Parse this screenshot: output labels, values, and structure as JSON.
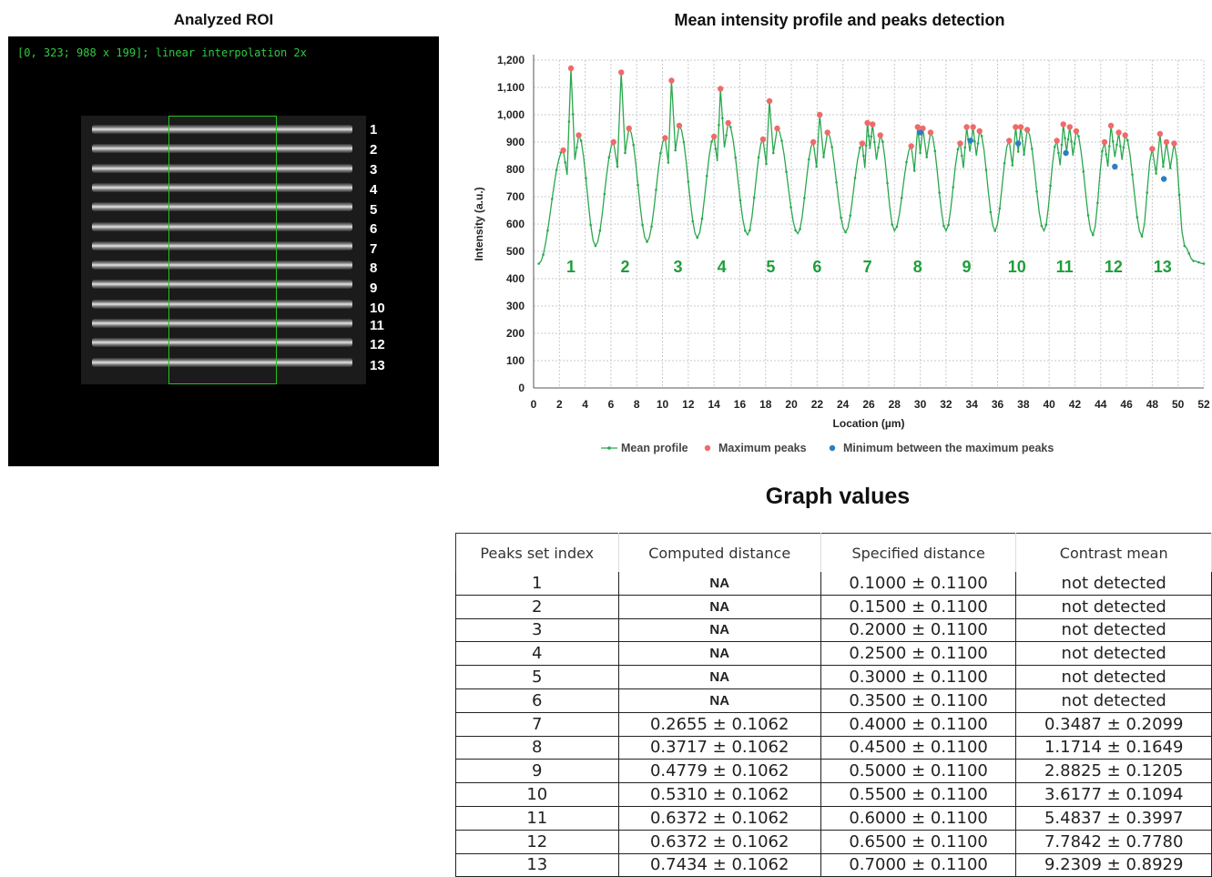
{
  "roi": {
    "title": "Analyzed ROI",
    "caption": "[0, 323; 988 x 199]; linear interpolation 2x",
    "labels": [
      "1",
      "2",
      "3",
      "4",
      "5",
      "6",
      "7",
      "8",
      "9",
      "10",
      "11",
      "12",
      "13"
    ]
  },
  "chart_data": {
    "type": "line",
    "title": "Mean intensity profile and peaks detection",
    "xlabel": "Location (µm)",
    "ylabel": "Intensity (a.u.)",
    "xlim": [
      0,
      52
    ],
    "ylim": [
      0,
      1200
    ],
    "xticks": [
      0,
      2,
      4,
      6,
      8,
      10,
      12,
      14,
      16,
      18,
      20,
      22,
      24,
      26,
      28,
      30,
      32,
      34,
      36,
      38,
      40,
      42,
      44,
      46,
      48,
      50,
      52
    ],
    "yticks": [
      0,
      100,
      200,
      300,
      400,
      500,
      600,
      700,
      800,
      900,
      1000,
      1100,
      1200
    ],
    "ytick_labels": [
      "0",
      "100",
      "200",
      "300",
      "400",
      "500",
      "600",
      "700",
      "800",
      "900",
      "1,000",
      "1,100",
      "1,200"
    ],
    "grid": true,
    "legend_position": "bottom",
    "colors": {
      "line": "#2aa84e",
      "max": "#ef6a6a",
      "min": "#2e7dbf",
      "label": "#1f9e3a"
    },
    "legend": [
      "Mean profile",
      "Maximum peaks",
      "Minimum between the maximum peaks"
    ],
    "group_labels": [
      {
        "text": "1",
        "x": 2.9
      },
      {
        "text": "2",
        "x": 7.1
      },
      {
        "text": "3",
        "x": 11.2
      },
      {
        "text": "4",
        "x": 14.6
      },
      {
        "text": "5",
        "x": 18.4
      },
      {
        "text": "6",
        "x": 22.0
      },
      {
        "text": "7",
        "x": 25.9
      },
      {
        "text": "8",
        "x": 29.8
      },
      {
        "text": "9",
        "x": 33.6
      },
      {
        "text": "10",
        "x": 37.5
      },
      {
        "text": "11",
        "x": 41.2
      },
      {
        "text": "12",
        "x": 45.0
      },
      {
        "text": "13",
        "x": 48.8
      }
    ],
    "groups": [
      {
        "min_before": [
          0.4,
          455
        ],
        "maxima": [
          [
            2.3,
            870
          ],
          [
            2.9,
            1170
          ],
          [
            3.5,
            925
          ]
        ],
        "minima": []
      },
      {
        "min_before": [
          4.8,
          520
        ],
        "maxima": [
          [
            6.2,
            900
          ],
          [
            6.8,
            1155
          ],
          [
            7.4,
            950
          ]
        ],
        "minima": []
      },
      {
        "min_before": [
          8.8,
          535
        ],
        "maxima": [
          [
            10.2,
            915
          ],
          [
            10.7,
            1125
          ],
          [
            11.3,
            960
          ]
        ],
        "minima": []
      },
      {
        "min_before": [
          12.7,
          550
        ],
        "maxima": [
          [
            14.0,
            920
          ],
          [
            14.5,
            1095
          ],
          [
            15.1,
            970
          ]
        ],
        "minima": []
      },
      {
        "min_before": [
          16.6,
          560
        ],
        "maxima": [
          [
            17.8,
            910
          ],
          [
            18.3,
            1050
          ],
          [
            18.9,
            950
          ]
        ],
        "minima": []
      },
      {
        "min_before": [
          20.5,
          565
        ],
        "maxima": [
          [
            21.7,
            900
          ],
          [
            22.2,
            1000
          ],
          [
            22.8,
            935
          ]
        ],
        "minima": []
      },
      {
        "min_before": [
          24.2,
          570
        ],
        "maxima": [
          [
            25.5,
            895
          ],
          [
            25.9,
            970
          ],
          [
            26.3,
            965
          ],
          [
            26.9,
            925
          ]
        ],
        "minima": []
      },
      {
        "min_before": [
          28.0,
          575
        ],
        "maxima": [
          [
            29.3,
            885
          ],
          [
            29.8,
            955
          ],
          [
            30.2,
            950
          ],
          [
            30.8,
            935
          ]
        ],
        "minima": [
          [
            30.0,
            935
          ]
        ]
      },
      {
        "min_before": [
          32.0,
          575
        ],
        "maxima": [
          [
            33.1,
            895
          ],
          [
            33.6,
            955
          ],
          [
            34.1,
            955
          ],
          [
            34.6,
            940
          ]
        ],
        "minima": [
          [
            33.9,
            905
          ]
        ]
      },
      {
        "min_before": [
          35.8,
          575
        ],
        "maxima": [
          [
            36.9,
            905
          ],
          [
            37.4,
            955
          ],
          [
            37.8,
            955
          ],
          [
            38.3,
            945
          ]
        ],
        "minima": [
          [
            37.6,
            895
          ]
        ]
      },
      {
        "min_before": [
          39.6,
          575
        ],
        "maxima": [
          [
            40.6,
            905
          ],
          [
            41.1,
            965
          ],
          [
            41.6,
            955
          ],
          [
            42.1,
            940
          ]
        ],
        "minima": [
          [
            41.3,
            860
          ]
        ]
      },
      {
        "min_before": [
          43.4,
          560
        ],
        "maxima": [
          [
            44.3,
            900
          ],
          [
            44.8,
            960
          ],
          [
            45.4,
            935
          ],
          [
            45.9,
            925
          ]
        ],
        "minima": [
          [
            45.1,
            810
          ]
        ]
      },
      {
        "min_before": [
          47.2,
          555
        ],
        "maxima": [
          [
            48.0,
            875
          ],
          [
            48.6,
            930
          ],
          [
            49.1,
            900
          ],
          [
            49.7,
            895
          ]
        ],
        "minima": [
          [
            48.9,
            765
          ]
        ]
      }
    ],
    "tail": [
      [
        50.5,
        520
      ],
      [
        51.2,
        465
      ],
      [
        52.0,
        455
      ]
    ]
  },
  "table": {
    "title": "Graph values",
    "headers": [
      "Peaks set index",
      "Computed distance",
      "Specified distance",
      "Contrast mean"
    ],
    "rows": [
      [
        "1",
        "NA",
        "0.1000 ± 0.1100",
        "not detected"
      ],
      [
        "2",
        "NA",
        "0.1500 ± 0.1100",
        "not detected"
      ],
      [
        "3",
        "NA",
        "0.2000 ± 0.1100",
        "not detected"
      ],
      [
        "4",
        "NA",
        "0.2500 ± 0.1100",
        "not detected"
      ],
      [
        "5",
        "NA",
        "0.3000 ± 0.1100",
        "not detected"
      ],
      [
        "6",
        "NA",
        "0.3500 ± 0.1100",
        "not detected"
      ],
      [
        "7",
        "0.2655 ± 0.1062",
        "0.4000 ± 0.1100",
        "0.3487 ± 0.2099"
      ],
      [
        "8",
        "0.3717 ± 0.1062",
        "0.4500 ± 0.1100",
        "1.1714 ± 0.1649"
      ],
      [
        "9",
        "0.4779 ± 0.1062",
        "0.5000 ± 0.1100",
        "2.8825 ± 0.1205"
      ],
      [
        "10",
        "0.5310 ± 0.1062",
        "0.5500 ± 0.1100",
        "3.6177 ± 0.1094"
      ],
      [
        "11",
        "0.6372 ± 0.1062",
        "0.6000 ± 0.1100",
        "5.4837 ± 0.3997"
      ],
      [
        "12",
        "0.6372 ± 0.1062",
        "0.6500 ± 0.1100",
        "7.7842 ± 0.7780"
      ],
      [
        "13",
        "0.7434 ± 0.1062",
        "0.7000 ± 0.1100",
        "9.2309 ± 0.8929"
      ]
    ]
  }
}
